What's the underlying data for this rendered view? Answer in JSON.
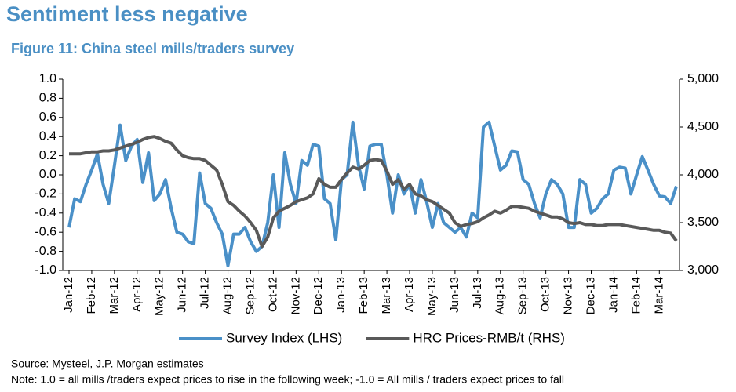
{
  "chart_data": {
    "type": "line",
    "title": "Sentiment less negative",
    "subtitle": "Figure 11: China steel mills/traders survey",
    "source": "Source: Mysteel, J.P. Morgan estimates",
    "note": "Note: 1.0 = all mills /traders expect prices to rise in the following week; -1.0 = All mills / traders expect prices to fall",
    "categories": [
      "Jan-12",
      null,
      null,
      null,
      "Feb-12",
      null,
      null,
      null,
      "Mar-12",
      null,
      null,
      null,
      "Apr-12",
      null,
      null,
      null,
      "May-12",
      null,
      null,
      null,
      "Jun-12",
      null,
      null,
      null,
      "Jul-12",
      null,
      null,
      null,
      "Aug-12",
      null,
      null,
      null,
      "Sep-12",
      null,
      null,
      null,
      "Oct-12",
      null,
      null,
      null,
      "Nov-12",
      null,
      null,
      null,
      "Dec-12",
      null,
      null,
      null,
      "Jan-13",
      null,
      null,
      null,
      "Feb-13",
      null,
      null,
      null,
      "Mar-13",
      null,
      null,
      null,
      "Apr-13",
      null,
      null,
      null,
      "May-13",
      null,
      null,
      null,
      "Jun-13",
      null,
      null,
      null,
      "Jul-13",
      null,
      null,
      null,
      "Aug-13",
      null,
      null,
      null,
      "Sep-13",
      null,
      null,
      null,
      "Oct-13",
      null,
      null,
      null,
      "Nov-13",
      null,
      null,
      null,
      "Dec-13",
      null,
      null,
      null,
      "Jan-14",
      null,
      null,
      null,
      "Feb-14",
      null,
      null,
      null,
      "Mar-14",
      null,
      null,
      null
    ],
    "series": [
      {
        "name": "Survey Index (LHS)",
        "color": "#4a90c8",
        "axis": "y",
        "values": [
          -0.55,
          -0.25,
          -0.28,
          -0.1,
          0.05,
          0.22,
          -0.1,
          -0.3,
          0.1,
          0.52,
          0.15,
          0.3,
          0.37,
          -0.08,
          0.23,
          -0.27,
          -0.2,
          -0.05,
          -0.35,
          -0.6,
          -0.62,
          -0.7,
          -0.72,
          0.02,
          -0.3,
          -0.35,
          -0.5,
          -0.62,
          -0.95,
          -0.62,
          -0.62,
          -0.55,
          -0.7,
          -0.8,
          -0.75,
          -0.5,
          0.0,
          -0.55,
          0.23,
          -0.1,
          -0.3,
          0.15,
          0.1,
          0.32,
          0.3,
          -0.25,
          -0.3,
          -0.68,
          -0.05,
          0.0,
          0.55,
          0.1,
          -0.15,
          0.3,
          0.32,
          0.32,
          0.0,
          -0.4,
          0.0,
          -0.2,
          -0.1,
          -0.4,
          -0.05,
          -0.28,
          -0.55,
          -0.3,
          -0.5,
          -0.55,
          -0.6,
          -0.55,
          -0.65,
          -0.4,
          -0.45,
          0.5,
          0.55,
          0.3,
          0.05,
          0.1,
          0.25,
          0.24,
          -0.05,
          -0.1,
          -0.3,
          -0.45,
          -0.2,
          -0.05,
          -0.1,
          -0.2,
          -0.55,
          -0.55,
          -0.05,
          -0.1,
          -0.4,
          -0.35,
          -0.25,
          -0.2,
          0.05,
          0.08,
          0.07,
          -0.2,
          0.0,
          0.19,
          0.05,
          -0.1,
          -0.22,
          -0.23,
          -0.3,
          -0.12
        ]
      },
      {
        "name": "HRC Prices-RMB/t (RHS)",
        "color": "#595959",
        "axis": "y2",
        "values": [
          4220,
          4220,
          4220,
          4230,
          4240,
          4240,
          4250,
          4250,
          4260,
          4280,
          4300,
          4320,
          4340,
          4370,
          4390,
          4400,
          4380,
          4350,
          4330,
          4260,
          4200,
          4180,
          4170,
          4170,
          4150,
          4100,
          4050,
          3900,
          3720,
          3680,
          3620,
          3570,
          3500,
          3420,
          3250,
          3350,
          3550,
          3620,
          3650,
          3680,
          3720,
          3740,
          3760,
          3800,
          3960,
          3900,
          3870,
          3870,
          3950,
          4020,
          4080,
          4060,
          4100,
          4150,
          4160,
          4150,
          4040,
          3900,
          3950,
          3850,
          3900,
          3800,
          3780,
          3740,
          3720,
          3680,
          3640,
          3600,
          3500,
          3460,
          3480,
          3490,
          3510,
          3550,
          3580,
          3620,
          3600,
          3630,
          3670,
          3670,
          3660,
          3650,
          3620,
          3600,
          3580,
          3560,
          3560,
          3540,
          3500,
          3490,
          3500,
          3480,
          3480,
          3470,
          3470,
          3480,
          3480,
          3480,
          3470,
          3460,
          3450,
          3440,
          3430,
          3420,
          3420,
          3400,
          3390,
          3310
        ]
      }
    ],
    "ylim": [
      -1.0,
      1.0
    ],
    "yticks": [
      {
        "value": -1.0,
        "label": "-1.0"
      },
      {
        "value": -0.8,
        "label": "-0.8"
      },
      {
        "value": -0.6,
        "label": "-0.6"
      },
      {
        "value": -0.4,
        "label": "-0.4"
      },
      {
        "value": -0.2,
        "label": "-0.2"
      },
      {
        "value": 0.0,
        "label": "0.0"
      },
      {
        "value": 0.2,
        "label": "0.2"
      },
      {
        "value": 0.4,
        "label": "0.4"
      },
      {
        "value": 0.6,
        "label": "0.6"
      },
      {
        "value": 0.8,
        "label": "0.8"
      },
      {
        "value": 1.0,
        "label": "1.0"
      }
    ],
    "y2lim": [
      3000,
      5000
    ],
    "y2ticks": [
      {
        "value": 3000,
        "label": "3,000"
      },
      {
        "value": 3500,
        "label": "3,500"
      },
      {
        "value": 4000,
        "label": "4,000"
      },
      {
        "value": 4500,
        "label": "4,500"
      },
      {
        "value": 5000,
        "label": "5,000"
      }
    ],
    "grid": false,
    "legend": "bottom"
  }
}
